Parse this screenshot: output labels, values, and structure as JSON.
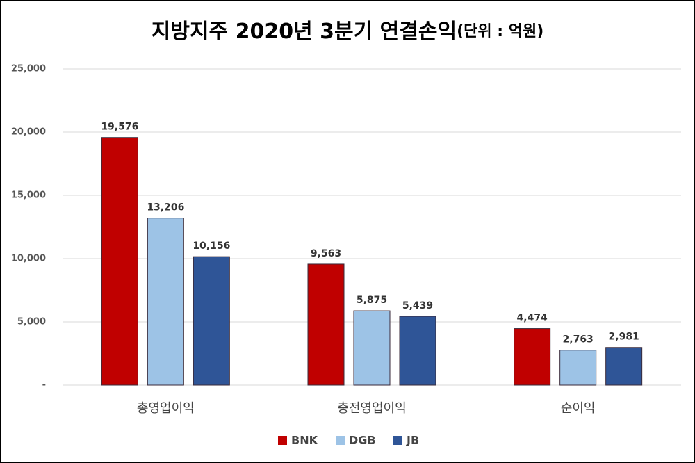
{
  "chart_data": {
    "type": "bar",
    "title": "지방지주 2020년 3분기 연결손익",
    "unit": "(단위 : 억원)",
    "categories": [
      "총영업이익",
      "충전영업이익",
      "순이익"
    ],
    "series": [
      {
        "name": "BNK",
        "color": "#c00000",
        "values": [
          19576,
          9563,
          4474
        ],
        "value_labels": [
          "19,576",
          "9,563",
          "4,474"
        ]
      },
      {
        "name": "DGB",
        "color": "#9dc3e6",
        "values": [
          13206,
          5875,
          2763
        ],
        "value_labels": [
          "13,206",
          "5,875",
          "2,763"
        ]
      },
      {
        "name": "JB",
        "color": "#2f5597",
        "values": [
          10156,
          5439,
          2981
        ],
        "value_labels": [
          "10,156",
          "5,439",
          "2,981"
        ]
      }
    ],
    "ylim": [
      0,
      25000
    ],
    "yticks": [
      {
        "value": 0,
        "label": "-"
      },
      {
        "value": 5000,
        "label": "5,000"
      },
      {
        "value": 10000,
        "label": "10,000"
      },
      {
        "value": 15000,
        "label": "15,000"
      },
      {
        "value": 20000,
        "label": "20,000"
      },
      {
        "value": 25000,
        "label": "25,000"
      }
    ],
    "grid": true,
    "legend": "bottom"
  }
}
